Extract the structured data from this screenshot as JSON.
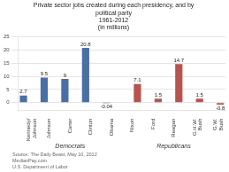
{
  "chart_data": {
    "type": "bar",
    "title": "Private sector jobs created during each presidency, and by\npolitical party\n1961-2012\n(in millions)",
    "categories": [
      "Kennedy/\nJohnson",
      "Johnson",
      "Carter",
      "Clinton",
      "Obama",
      "Nixon",
      "Ford",
      "Reagan",
      "G.H.W.\nBush",
      "G.W.\nBush"
    ],
    "series": [
      {
        "name": "Democrats",
        "color": "#4a6fa5",
        "values": [
          2.7,
          9.5,
          9.0,
          20.8,
          -0.04,
          null,
          null,
          null,
          null,
          null
        ]
      },
      {
        "name": "Republicans",
        "color": "#b85450",
        "values": [
          null,
          null,
          null,
          null,
          null,
          7.1,
          1.5,
          14.7,
          1.5,
          -0.8
        ]
      }
    ],
    "ylim": [
      -3,
      25
    ],
    "yticks": [
      0,
      5,
      10,
      15,
      20,
      25
    ],
    "grid": true,
    "data_labels": true,
    "footer": "Source: The Daily Beast, May 10, 2012\nMedianPay.com\nU.S. Department of Labor"
  }
}
